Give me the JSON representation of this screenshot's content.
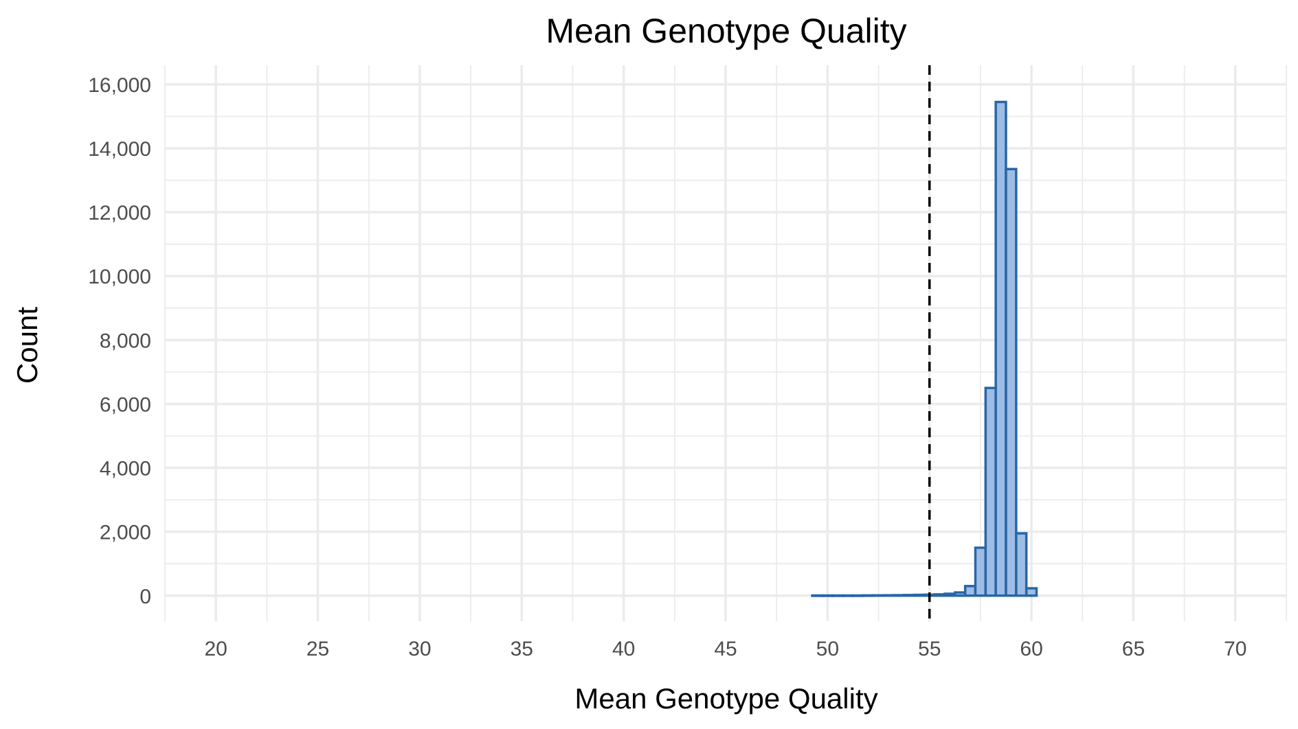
{
  "chart_data": {
    "type": "bar",
    "title": "Mean Genotype Quality",
    "xlabel": "Mean Genotype Quality",
    "ylabel": "Count",
    "xlim": [
      17.5,
      72.5
    ],
    "ylim": [
      -800,
      16600
    ],
    "x_ticks": [
      20,
      25,
      30,
      35,
      40,
      45,
      50,
      55,
      60,
      65,
      70
    ],
    "x_tick_labels": [
      "20",
      "25",
      "30",
      "35",
      "40",
      "45",
      "50",
      "55",
      "60",
      "65",
      "70"
    ],
    "y_ticks": [
      0,
      2000,
      4000,
      6000,
      8000,
      10000,
      12000,
      14000,
      16000
    ],
    "y_tick_labels": [
      "0",
      "2,000",
      "4,000",
      "6,000",
      "8,000",
      "10,000",
      "12,000",
      "14,000",
      "16,000"
    ],
    "grid": true,
    "bin_width": 0.5,
    "bins": [
      {
        "x0": 49.25,
        "x1": 49.75,
        "count": 5
      },
      {
        "x0": 49.75,
        "x1": 50.25,
        "count": 5
      },
      {
        "x0": 50.25,
        "x1": 50.75,
        "count": 5
      },
      {
        "x0": 50.75,
        "x1": 51.25,
        "count": 5
      },
      {
        "x0": 51.25,
        "x1": 51.75,
        "count": 5
      },
      {
        "x0": 51.75,
        "x1": 52.25,
        "count": 8
      },
      {
        "x0": 52.25,
        "x1": 52.75,
        "count": 10
      },
      {
        "x0": 52.75,
        "x1": 53.25,
        "count": 12
      },
      {
        "x0": 53.25,
        "x1": 53.75,
        "count": 15
      },
      {
        "x0": 53.75,
        "x1": 54.25,
        "count": 20
      },
      {
        "x0": 54.25,
        "x1": 54.75,
        "count": 25
      },
      {
        "x0": 54.75,
        "x1": 55.25,
        "count": 30
      },
      {
        "x0": 55.25,
        "x1": 55.75,
        "count": 40
      },
      {
        "x0": 55.75,
        "x1": 56.25,
        "count": 60
      },
      {
        "x0": 56.25,
        "x1": 56.75,
        "count": 100
      },
      {
        "x0": 56.75,
        "x1": 57.25,
        "count": 300
      },
      {
        "x0": 57.25,
        "x1": 57.75,
        "count": 1500
      },
      {
        "x0": 57.75,
        "x1": 58.25,
        "count": 6500
      },
      {
        "x0": 58.25,
        "x1": 58.75,
        "count": 15450
      },
      {
        "x0": 58.75,
        "x1": 59.25,
        "count": 13350
      },
      {
        "x0": 59.25,
        "x1": 59.75,
        "count": 1950
      },
      {
        "x0": 59.75,
        "x1": 60.25,
        "count": 230
      }
    ],
    "threshold_line": {
      "x": 55,
      "style": "dashed",
      "color": "#000000"
    },
    "bar_fill": "#9ebce4",
    "bar_stroke": "#2766a7"
  }
}
